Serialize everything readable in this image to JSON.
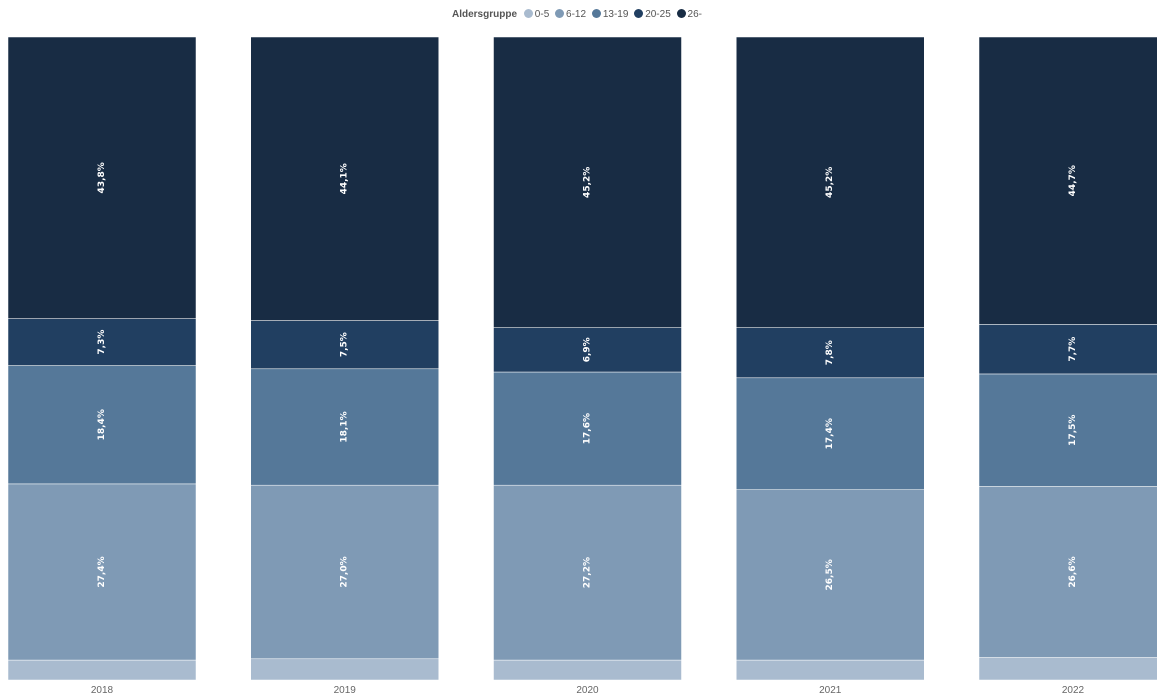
{
  "legend": {
    "title": "Aldersgruppe",
    "items": [
      {
        "label": "0-5",
        "color": "#a9bbcf"
      },
      {
        "label": "6-12",
        "color": "#7f9ab5"
      },
      {
        "label": "13-19",
        "color": "#557899"
      },
      {
        "label": "20-25",
        "color": "#213f61"
      },
      {
        "label": "26-",
        "color": "#182c44"
      }
    ]
  },
  "chart_data": {
    "type": "bar",
    "stacked": true,
    "percent": true,
    "categories": [
      "2018",
      "2019",
      "2020",
      "2021",
      "2022"
    ],
    "series": [
      {
        "name": "0-5",
        "color": "#a9bbcf",
        "values": [
          3.1,
          3.3,
          3.1,
          3.1,
          3.5
        ],
        "labels": [
          "",
          "",
          "",
          "",
          ""
        ]
      },
      {
        "name": "6-12",
        "color": "#7f9ab5",
        "values": [
          27.4,
          27.0,
          27.2,
          26.5,
          26.6
        ],
        "labels": [
          "27,4%",
          "27,0%",
          "27,2%",
          "26,5%",
          "26,6%"
        ]
      },
      {
        "name": "13-19",
        "color": "#557899",
        "values": [
          18.4,
          18.1,
          17.6,
          17.4,
          17.5
        ],
        "labels": [
          "18,4%",
          "18,1%",
          "17,6%",
          "17,4%",
          "17,5%"
        ]
      },
      {
        "name": "20-25",
        "color": "#213f61",
        "values": [
          7.3,
          7.5,
          6.9,
          7.8,
          7.7
        ],
        "labels": [
          "7,3%",
          "7,5%",
          "6,9%",
          "7,8%",
          "7,7%"
        ]
      },
      {
        "name": "26-",
        "color": "#182c44",
        "values": [
          43.8,
          44.1,
          45.2,
          45.2,
          44.7
        ],
        "labels": [
          "43,8%",
          "44,1%",
          "45,2%",
          "45,2%",
          "44,7%"
        ]
      }
    ],
    "ylim": [
      0,
      100
    ],
    "legend_position": "top-center"
  }
}
